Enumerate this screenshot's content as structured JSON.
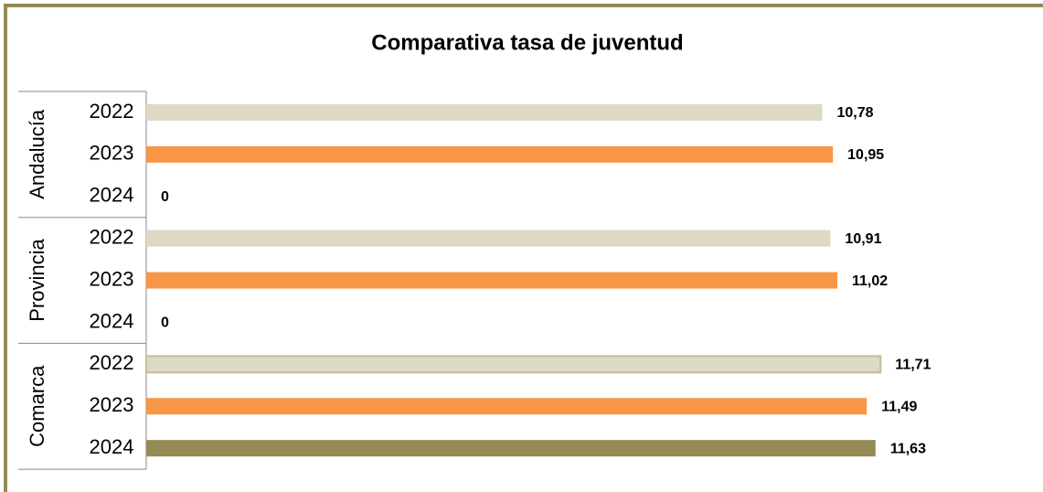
{
  "chart_data": {
    "type": "grouped_hbar",
    "title": "Comparativa tasa de juventud",
    "groups": [
      "Andalucía",
      "Provincia",
      "Comarca"
    ],
    "series": [
      {
        "name": "2022",
        "color": "#ddd9c4",
        "values": [
          10.78,
          10.91,
          11.71
        ],
        "value_labels": [
          "10,78",
          "10,91",
          "11,71"
        ]
      },
      {
        "name": "2023",
        "color": "#f79646",
        "values": [
          10.95,
          11.02,
          11.49
        ],
        "value_labels": [
          "10,95",
          "11,02",
          "11,49"
        ]
      },
      {
        "name": "2024",
        "color": "#948a54",
        "values": [
          0,
          0,
          11.63
        ],
        "value_labels": [
          "0",
          "0",
          "11,63"
        ]
      }
    ],
    "xlim": [
      0,
      12.5
    ]
  }
}
